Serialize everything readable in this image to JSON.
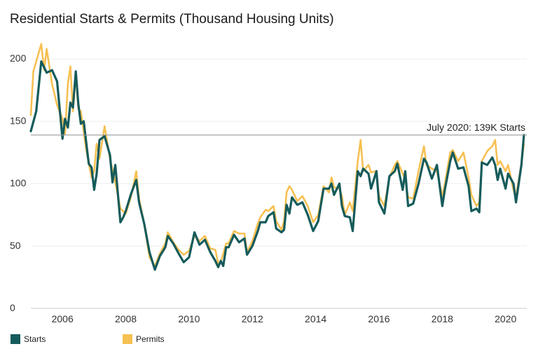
{
  "title": "Residential Starts & Permits (Thousand Housing Units)",
  "colors": {
    "starts": "#165b5b",
    "permits": "#f7c052",
    "refline": "#999999",
    "grid": "#eeeeee"
  },
  "chart_data": {
    "type": "line",
    "title": "Residential Starts & Permits (Thousand Housing Units)",
    "xlabel": "",
    "ylabel": "",
    "xlim": [
      2005.0,
      2020.67
    ],
    "ylim": [
      0,
      222
    ],
    "xticks": [
      2006,
      2008,
      2010,
      2012,
      2014,
      2016,
      2018,
      2020
    ],
    "yticks": [
      0,
      50,
      100,
      150,
      200
    ],
    "grid": true,
    "legend": "bottom-left",
    "annotation": {
      "text": "July 2020: 139K Starts",
      "y": 139
    },
    "series": [
      {
        "name": "Starts",
        "color": "#165b5b",
        "points": [
          [
            2005.0,
            142
          ],
          [
            2005.17,
            158
          ],
          [
            2005.33,
            198
          ],
          [
            2005.5,
            189
          ],
          [
            2005.67,
            191
          ],
          [
            2005.83,
            182
          ],
          [
            2006.0,
            136
          ],
          [
            2006.08,
            152
          ],
          [
            2006.17,
            145
          ],
          [
            2006.25,
            165
          ],
          [
            2006.33,
            161
          ],
          [
            2006.42,
            190
          ],
          [
            2006.5,
            164
          ],
          [
            2006.58,
            148
          ],
          [
            2006.67,
            150
          ],
          [
            2006.83,
            116
          ],
          [
            2006.92,
            113
          ],
          [
            2007.0,
            95
          ],
          [
            2007.08,
            108
          ],
          [
            2007.17,
            135
          ],
          [
            2007.33,
            138
          ],
          [
            2007.5,
            123
          ],
          [
            2007.58,
            101
          ],
          [
            2007.67,
            115
          ],
          [
            2007.83,
            69
          ],
          [
            2007.92,
            73
          ],
          [
            2008.0,
            78
          ],
          [
            2008.17,
            92
          ],
          [
            2008.33,
            103
          ],
          [
            2008.42,
            85
          ],
          [
            2008.58,
            68
          ],
          [
            2008.75,
            45
          ],
          [
            2008.92,
            31
          ],
          [
            2009.08,
            42
          ],
          [
            2009.25,
            49
          ],
          [
            2009.33,
            58
          ],
          [
            2009.5,
            52
          ],
          [
            2009.67,
            44
          ],
          [
            2009.83,
            37
          ],
          [
            2010.0,
            41
          ],
          [
            2010.17,
            61
          ],
          [
            2010.33,
            51
          ],
          [
            2010.5,
            55
          ],
          [
            2010.67,
            45
          ],
          [
            2010.83,
            38
          ],
          [
            2010.92,
            33
          ],
          [
            2011.0,
            38
          ],
          [
            2011.08,
            34
          ],
          [
            2011.17,
            49
          ],
          [
            2011.25,
            49
          ],
          [
            2011.42,
            59
          ],
          [
            2011.58,
            53
          ],
          [
            2011.75,
            56
          ],
          [
            2011.83,
            43
          ],
          [
            2012.0,
            50
          ],
          [
            2012.17,
            62
          ],
          [
            2012.25,
            69
          ],
          [
            2012.42,
            69
          ],
          [
            2012.5,
            74
          ],
          [
            2012.67,
            77
          ],
          [
            2012.75,
            64
          ],
          [
            2012.92,
            61
          ],
          [
            2013.0,
            63
          ],
          [
            2013.08,
            83
          ],
          [
            2013.17,
            76
          ],
          [
            2013.25,
            89
          ],
          [
            2013.42,
            83
          ],
          [
            2013.58,
            85
          ],
          [
            2013.75,
            75
          ],
          [
            2013.92,
            62
          ],
          [
            2014.08,
            70
          ],
          [
            2014.25,
            96
          ],
          [
            2014.42,
            96
          ],
          [
            2014.5,
            100
          ],
          [
            2014.58,
            91
          ],
          [
            2014.75,
            100
          ],
          [
            2014.83,
            82
          ],
          [
            2014.92,
            74
          ],
          [
            2015.08,
            73
          ],
          [
            2015.17,
            62
          ],
          [
            2015.33,
            110
          ],
          [
            2015.42,
            106
          ],
          [
            2015.5,
            112
          ],
          [
            2015.67,
            108
          ],
          [
            2015.75,
            96
          ],
          [
            2015.92,
            110
          ],
          [
            2016.0,
            85
          ],
          [
            2016.17,
            76
          ],
          [
            2016.33,
            106
          ],
          [
            2016.5,
            110
          ],
          [
            2016.58,
            116
          ],
          [
            2016.75,
            95
          ],
          [
            2016.83,
            110
          ],
          [
            2016.92,
            82
          ],
          [
            2017.08,
            84
          ],
          [
            2017.25,
            100
          ],
          [
            2017.42,
            120
          ],
          [
            2017.5,
            117
          ],
          [
            2017.67,
            104
          ],
          [
            2017.83,
            115
          ],
          [
            2018.0,
            82
          ],
          [
            2018.08,
            95
          ],
          [
            2018.25,
            118
          ],
          [
            2018.33,
            125
          ],
          [
            2018.5,
            112
          ],
          [
            2018.67,
            113
          ],
          [
            2018.83,
            98
          ],
          [
            2018.92,
            78
          ],
          [
            2019.08,
            80
          ],
          [
            2019.17,
            77
          ],
          [
            2019.25,
            117
          ],
          [
            2019.42,
            115
          ],
          [
            2019.58,
            121
          ],
          [
            2019.67,
            115
          ],
          [
            2019.75,
            103
          ],
          [
            2019.83,
            112
          ],
          [
            2020.0,
            96
          ],
          [
            2020.08,
            108
          ],
          [
            2020.25,
            100
          ],
          [
            2020.33,
            85
          ],
          [
            2020.5,
            115
          ],
          [
            2020.58,
            139
          ]
        ]
      },
      {
        "name": "Permits",
        "color": "#f7c052",
        "points": [
          [
            2005.0,
            155
          ],
          [
            2005.08,
            190
          ],
          [
            2005.33,
            212
          ],
          [
            2005.42,
            191
          ],
          [
            2005.5,
            208
          ],
          [
            2005.67,
            180
          ],
          [
            2005.83,
            163
          ],
          [
            2006.0,
            152
          ],
          [
            2006.08,
            140
          ],
          [
            2006.17,
            180
          ],
          [
            2006.25,
            194
          ],
          [
            2006.33,
            158
          ],
          [
            2006.42,
            188
          ],
          [
            2006.5,
            160
          ],
          [
            2006.58,
            158
          ],
          [
            2006.75,
            127
          ],
          [
            2006.92,
            105
          ],
          [
            2007.0,
            110
          ],
          [
            2007.08,
            132
          ],
          [
            2007.17,
            120
          ],
          [
            2007.33,
            146
          ],
          [
            2007.5,
            120
          ],
          [
            2007.67,
            101
          ],
          [
            2007.83,
            80
          ],
          [
            2008.0,
            76
          ],
          [
            2008.17,
            90
          ],
          [
            2008.33,
            110
          ],
          [
            2008.42,
            88
          ],
          [
            2008.58,
            68
          ],
          [
            2008.75,
            41
          ],
          [
            2008.92,
            34
          ],
          [
            2009.08,
            44
          ],
          [
            2009.25,
            52
          ],
          [
            2009.33,
            61
          ],
          [
            2009.5,
            53
          ],
          [
            2009.67,
            47
          ],
          [
            2009.83,
            43
          ],
          [
            2010.0,
            46
          ],
          [
            2010.17,
            58
          ],
          [
            2010.33,
            54
          ],
          [
            2010.5,
            58
          ],
          [
            2010.67,
            48
          ],
          [
            2010.83,
            47
          ],
          [
            2010.92,
            36
          ],
          [
            2011.0,
            37
          ],
          [
            2011.17,
            52
          ],
          [
            2011.25,
            52
          ],
          [
            2011.42,
            62
          ],
          [
            2011.58,
            60
          ],
          [
            2011.75,
            60
          ],
          [
            2011.83,
            45
          ],
          [
            2012.0,
            54
          ],
          [
            2012.17,
            68
          ],
          [
            2012.25,
            73
          ],
          [
            2012.42,
            79
          ],
          [
            2012.5,
            78
          ],
          [
            2012.67,
            82
          ],
          [
            2012.75,
            70
          ],
          [
            2012.92,
            63
          ],
          [
            2013.0,
            70
          ],
          [
            2013.08,
            93
          ],
          [
            2013.17,
            98
          ],
          [
            2013.25,
            95
          ],
          [
            2013.42,
            86
          ],
          [
            2013.58,
            90
          ],
          [
            2013.75,
            82
          ],
          [
            2013.92,
            69
          ],
          [
            2014.08,
            75
          ],
          [
            2014.25,
            98
          ],
          [
            2014.42,
            93
          ],
          [
            2014.5,
            105
          ],
          [
            2014.58,
            97
          ],
          [
            2014.75,
            96
          ],
          [
            2014.83,
            90
          ],
          [
            2014.92,
            75
          ],
          [
            2015.08,
            85
          ],
          [
            2015.17,
            78
          ],
          [
            2015.33,
            118
          ],
          [
            2015.42,
            135
          ],
          [
            2015.5,
            110
          ],
          [
            2015.67,
            115
          ],
          [
            2015.75,
            109
          ],
          [
            2015.92,
            110
          ],
          [
            2016.0,
            90
          ],
          [
            2016.17,
            82
          ],
          [
            2016.33,
            105
          ],
          [
            2016.5,
            115
          ],
          [
            2016.58,
            118
          ],
          [
            2016.75,
            108
          ],
          [
            2016.83,
            104
          ],
          [
            2016.92,
            89
          ],
          [
            2017.08,
            88
          ],
          [
            2017.25,
            110
          ],
          [
            2017.42,
            130
          ],
          [
            2017.5,
            115
          ],
          [
            2017.67,
            112
          ],
          [
            2017.83,
            110
          ],
          [
            2018.0,
            90
          ],
          [
            2018.08,
            100
          ],
          [
            2018.25,
            125
          ],
          [
            2018.33,
            127
          ],
          [
            2018.5,
            118
          ],
          [
            2018.67,
            125
          ],
          [
            2018.83,
            105
          ],
          [
            2018.92,
            91
          ],
          [
            2019.08,
            82
          ],
          [
            2019.17,
            85
          ],
          [
            2019.25,
            118
          ],
          [
            2019.42,
            126
          ],
          [
            2019.58,
            130
          ],
          [
            2019.67,
            135
          ],
          [
            2019.75,
            115
          ],
          [
            2019.83,
            118
          ],
          [
            2020.0,
            110
          ],
          [
            2020.08,
            115
          ],
          [
            2020.25,
            95
          ],
          [
            2020.33,
            90
          ],
          [
            2020.5,
            116
          ],
          [
            2020.58,
            132
          ]
        ]
      }
    ]
  },
  "legend": [
    {
      "label": "Starts",
      "color": "#165b5b"
    },
    {
      "label": "Permits",
      "color": "#f7c052"
    }
  ]
}
